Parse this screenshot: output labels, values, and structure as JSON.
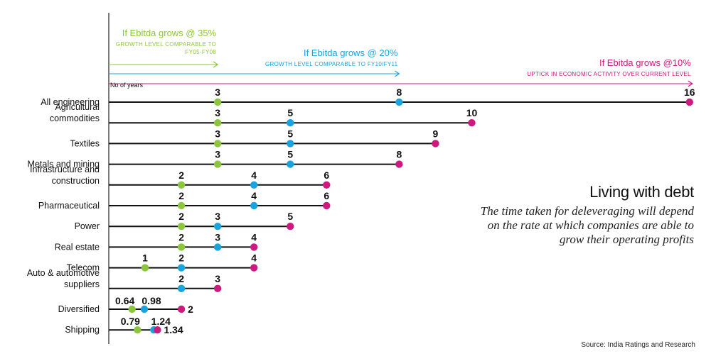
{
  "chart_data": {
    "type": "dot-line",
    "x_label": "No of years",
    "colors": {
      "ebitda_35": "#8cc63f",
      "ebitda_20": "#1aa3dc",
      "ebitda_10": "#cc1a7f",
      "line": "#111111"
    },
    "scenarios": [
      {
        "name": "If Ebitda grows @ 35%",
        "subtitle": [
          "GROWTH LEVEL COMPARABLE TO",
          "FY05-FY08"
        ],
        "color": "#8cc63f",
        "years": 3
      },
      {
        "name": "If Ebitda grows @ 20%",
        "subtitle": [
          "GROWTH LEVEL COMPARABLE TO FY10/FY11"
        ],
        "color": "#1aa3dc",
        "years": 8
      },
      {
        "name": "If Ebitda grows @10%",
        "subtitle": [
          "UPTICK IN ECONOMIC ACTIVITY OVER CURRENT LEVEL"
        ],
        "color": "#cc1a7f",
        "years": 16
      }
    ],
    "categories": [
      {
        "label": [
          "All engineering"
        ],
        "ebitda_35": 3,
        "ebitda_20": 8,
        "ebitda_10": 16
      },
      {
        "label": [
          "Agricultural",
          "commodities"
        ],
        "ebitda_35": 3,
        "ebitda_20": 5,
        "ebitda_10": 10
      },
      {
        "label": [
          "Textiles"
        ],
        "ebitda_35": 3,
        "ebitda_20": 5,
        "ebitda_10": 9
      },
      {
        "label": [
          "Metals and mining"
        ],
        "ebitda_35": 3,
        "ebitda_20": 5,
        "ebitda_10": 8
      },
      {
        "label": [
          "Infrastructure and",
          "construction"
        ],
        "ebitda_35": 2,
        "ebitda_20": 4,
        "ebitda_10": 6
      },
      {
        "label": [
          "Pharmaceutical"
        ],
        "ebitda_35": 2,
        "ebitda_20": 4,
        "ebitda_10": 6
      },
      {
        "label": [
          "Power"
        ],
        "ebitda_35": 2,
        "ebitda_20": 3,
        "ebitda_10": 5
      },
      {
        "label": [
          "Real estate"
        ],
        "ebitda_35": 2,
        "ebitda_20": 3,
        "ebitda_10": 4
      },
      {
        "label": [
          "Telecom"
        ],
        "ebitda_35": 1,
        "ebitda_20": 2,
        "ebitda_10": 4
      },
      {
        "label": [
          "Auto & automotive",
          "suppliers"
        ],
        "ebitda_35": 2,
        "ebitda_20": 2,
        "ebitda_10": 3
      },
      {
        "label": [
          "Diversified"
        ],
        "ebitda_35": 0.64,
        "ebitda_20": 0.98,
        "ebitda_10": 2
      },
      {
        "label": [
          "Shipping"
        ],
        "ebitda_35": 0.79,
        "ebitda_20": 1.24,
        "ebitda_10": 1.34
      }
    ]
  },
  "headline": {
    "title": "Living with debt",
    "subtitle_lines": [
      "The time taken for deleveraging will depend",
      "on the rate at which companies are able to",
      "grow their operating profits"
    ]
  },
  "source": "Source: India Ratings and Research"
}
